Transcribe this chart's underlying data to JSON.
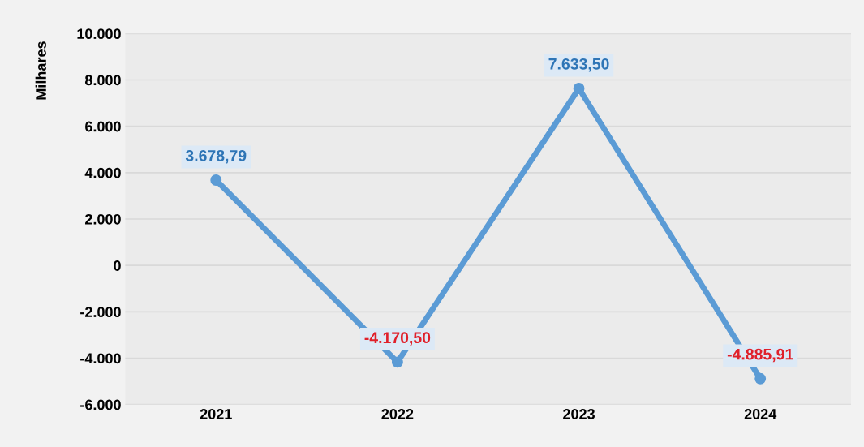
{
  "chart_data": {
    "type": "line",
    "ylabel": "Milhares",
    "categories": [
      "2021",
      "2022",
      "2023",
      "2024"
    ],
    "series": [
      {
        "color": "#5b9bd5",
        "values": [
          3678.79,
          -4170.5,
          7633.5,
          -4885.91
        ],
        "value_labels": [
          "3.678,79",
          "-4.170,50",
          "7.633,50",
          "-4.885,91"
        ]
      }
    ],
    "ylim": [
      -6000,
      10000
    ],
    "yticks": [
      {
        "value": -6000,
        "label": "-6.000"
      },
      {
        "value": -4000,
        "label": "-4.000"
      },
      {
        "value": -2000,
        "label": "-2.000"
      },
      0,
      {
        "value": 2000,
        "label": "2.000"
      },
      {
        "value": 4000,
        "label": "4.000"
      },
      {
        "value": 6000,
        "label": "6.000"
      },
      {
        "value": 8000,
        "label": "8.000"
      },
      {
        "value": 10000,
        "label": "10.000"
      }
    ],
    "grid": "y",
    "marker": "circle",
    "line_style": "solid",
    "legend": false
  }
}
